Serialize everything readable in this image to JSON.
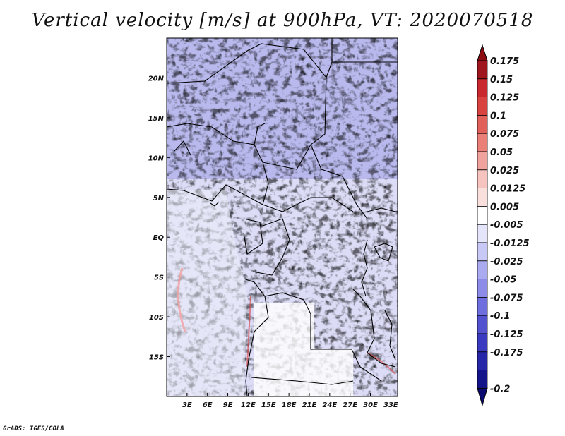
{
  "title": "Vertical velocity [m/s] at 900hPa, VT: 2020070518",
  "credit": "GrADS: IGES/COLA",
  "map": {
    "lat_labels": [
      "20N",
      "15N",
      "10N",
      "5N",
      "EQ",
      "5S",
      "10S",
      "15S"
    ],
    "lon_labels": [
      "3E",
      "6E",
      "9E",
      "12E",
      "15E",
      "18E",
      "21E",
      "24E",
      "27E",
      "30E",
      "33E"
    ],
    "lat_values": [
      20,
      15,
      10,
      5,
      0,
      -5,
      -10,
      -15
    ],
    "lon_values": [
      3,
      6,
      9,
      12,
      15,
      18,
      21,
      24,
      27,
      30,
      33
    ],
    "lat_range": [
      -20,
      25
    ],
    "lon_range": [
      0,
      34
    ]
  },
  "colorbar": {
    "labels": [
      "0.175",
      "0.15",
      "0.125",
      "0.1",
      "0.075",
      "0.05",
      "0.025",
      "0.0125",
      "0.005",
      "-0.005",
      "-0.0125",
      "-0.025",
      "-0.05",
      "-0.075",
      "-0.1",
      "-0.125",
      "-0.175",
      "-0.2"
    ],
    "colors": [
      "#a0161e",
      "#c8282e",
      "#d8423f",
      "#e2605a",
      "#ea7f78",
      "#f0a29c",
      "#f6c3bf",
      "#fae0dd",
      "#ffffff",
      "#e4e4fa",
      "#c8c8f6",
      "#aaaaf0",
      "#8c8ce8",
      "#6e6ede",
      "#5252d0",
      "#3a3ac0",
      "#2626a8",
      "#14148a"
    ],
    "top_arrow_color": "#8c0c12",
    "bottom_arrow_color": "#0a0a70"
  }
}
